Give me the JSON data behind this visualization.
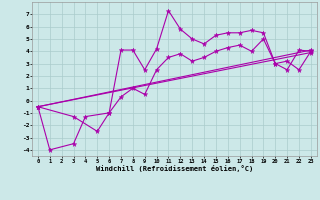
{
  "xlabel": "Windchill (Refroidissement éolien,°C)",
  "background_color": "#cce8e8",
  "grid_color": "#aacccc",
  "line_color": "#aa00aa",
  "xlim": [
    -0.5,
    23.5
  ],
  "ylim": [
    -4.5,
    8.0
  ],
  "xticks": [
    0,
    1,
    2,
    3,
    4,
    5,
    6,
    7,
    8,
    9,
    10,
    11,
    12,
    13,
    14,
    15,
    16,
    17,
    18,
    19,
    20,
    21,
    22,
    23
  ],
  "yticks": [
    -4,
    -3,
    -2,
    -1,
    0,
    1,
    2,
    3,
    4,
    5,
    6,
    7
  ],
  "series": [
    {
      "x": [
        0,
        1,
        3,
        4,
        6,
        7,
        8,
        9,
        10,
        11,
        12,
        13,
        14,
        15,
        16,
        17,
        18,
        19,
        20,
        21,
        22,
        23
      ],
      "y": [
        -0.5,
        -4.0,
        -3.5,
        -1.3,
        -1.0,
        4.1,
        4.1,
        2.5,
        4.2,
        7.3,
        5.8,
        5.0,
        4.6,
        5.3,
        5.5,
        5.5,
        5.7,
        5.5,
        3.0,
        2.5,
        4.1,
        4.0
      ]
    },
    {
      "x": [
        0,
        3,
        5,
        6,
        7,
        8,
        9,
        10,
        11,
        12,
        13,
        14,
        15,
        16,
        17,
        18,
        19,
        20,
        21,
        22,
        23
      ],
      "y": [
        -0.5,
        -1.3,
        -2.5,
        -1.0,
        0.3,
        1.0,
        0.5,
        2.5,
        3.5,
        3.8,
        3.2,
        3.5,
        4.0,
        4.3,
        4.5,
        4.0,
        5.0,
        3.0,
        3.2,
        2.5,
        4.0
      ]
    },
    {
      "x": [
        0,
        23
      ],
      "y": [
        -0.5,
        4.1
      ]
    },
    {
      "x": [
        0,
        23
      ],
      "y": [
        -0.5,
        3.9
      ]
    }
  ]
}
